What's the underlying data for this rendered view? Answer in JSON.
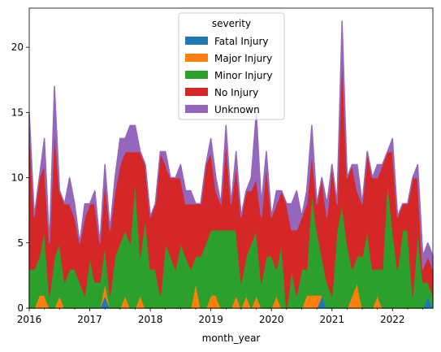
{
  "chart_data": {
    "type": "area",
    "stacked": true,
    "xlabel": "month_year",
    "ylabel": "",
    "x": [
      "2016-01",
      "2016-02",
      "2016-03",
      "2016-04",
      "2016-05",
      "2016-06",
      "2016-07",
      "2016-08",
      "2016-09",
      "2016-10",
      "2016-11",
      "2016-12",
      "2017-01",
      "2017-02",
      "2017-03",
      "2017-04",
      "2017-05",
      "2017-06",
      "2017-07",
      "2017-08",
      "2017-09",
      "2017-10",
      "2017-11",
      "2017-12",
      "2018-01",
      "2018-02",
      "2018-03",
      "2018-04",
      "2018-05",
      "2018-06",
      "2018-07",
      "2018-08",
      "2018-09",
      "2018-10",
      "2018-11",
      "2018-12",
      "2019-01",
      "2019-02",
      "2019-03",
      "2019-04",
      "2019-05",
      "2019-06",
      "2019-07",
      "2019-08",
      "2019-09",
      "2019-10",
      "2019-11",
      "2019-12",
      "2020-01",
      "2020-02",
      "2020-03",
      "2020-04",
      "2020-05",
      "2020-06",
      "2020-07",
      "2020-08",
      "2020-09",
      "2020-10",
      "2020-11",
      "2020-12",
      "2021-01",
      "2021-02",
      "2021-03",
      "2021-04",
      "2021-05",
      "2021-06",
      "2021-07",
      "2021-08",
      "2021-09",
      "2021-10",
      "2021-11",
      "2021-12",
      "2022-01",
      "2022-02",
      "2022-03",
      "2022-04",
      "2022-05",
      "2022-06",
      "2022-07",
      "2022-08",
      "2022-09"
    ],
    "xticks": [
      "2016",
      "2017",
      "2018",
      "2019",
      "2020",
      "2021",
      "2022"
    ],
    "xtick_dates": [
      "2016-01",
      "2017-01",
      "2018-01",
      "2019-01",
      "2020-01",
      "2021-01",
      "2022-01"
    ],
    "xlim": [
      "2016-01",
      "2022-09"
    ],
    "ylim": [
      0,
      23
    ],
    "yticks": [
      0,
      5,
      10,
      15,
      20
    ],
    "legend": {
      "title": "severity",
      "placement": "upper-center"
    },
    "series": [
      {
        "name": "Fatal Injury",
        "color": "#1f77b4",
        "values": [
          0,
          0,
          0,
          0,
          0,
          0,
          0,
          0,
          0,
          0,
          0,
          0,
          0,
          0,
          0,
          1,
          0,
          0,
          0,
          0,
          0,
          0,
          0,
          0,
          0,
          0,
          0,
          0,
          0,
          0,
          0,
          0,
          0,
          0,
          0,
          0,
          0,
          0,
          0,
          0,
          0,
          0,
          0,
          0,
          0,
          0,
          0,
          0,
          0,
          0,
          0,
          0,
          0,
          0,
          0,
          0,
          0,
          0,
          1,
          0,
          0,
          0,
          0,
          0,
          0,
          0,
          0,
          0,
          0,
          0,
          0,
          0,
          0,
          0,
          0,
          0,
          0,
          0,
          0,
          1,
          0
        ]
      },
      {
        "name": "Major Injury",
        "color": "#ff7f0e",
        "values": [
          0,
          0,
          1,
          1,
          0,
          0,
          1,
          0,
          0,
          0,
          0,
          0,
          0,
          0,
          0,
          1,
          0,
          0,
          0,
          1,
          0,
          0,
          1,
          0,
          0,
          0,
          0,
          0,
          0,
          0,
          0,
          0,
          0,
          2,
          0,
          0,
          1,
          1,
          0,
          0,
          0,
          1,
          0,
          1,
          0,
          1,
          0,
          0,
          0,
          1,
          0,
          0,
          0,
          0,
          0,
          1,
          1,
          1,
          0,
          0,
          0,
          0,
          0,
          0,
          1,
          2,
          0,
          0,
          0,
          1,
          0,
          0,
          0,
          0,
          0,
          0,
          0,
          0,
          0,
          0,
          0
        ]
      },
      {
        "name": "Minor Injury",
        "color": "#2ca02c",
        "values": [
          3,
          3,
          3,
          5,
          1,
          4,
          4,
          2,
          3,
          3,
          2,
          1,
          4,
          2,
          2,
          3,
          1,
          4,
          5,
          5,
          5,
          10,
          3,
          7,
          3,
          3,
          1,
          5,
          4,
          3,
          5,
          4,
          3,
          2,
          4,
          5,
          5,
          5,
          6,
          6,
          6,
          5,
          2,
          3,
          5,
          5,
          2,
          4,
          4,
          2,
          5,
          0,
          3,
          1,
          3,
          2,
          8,
          5,
          3,
          2,
          1,
          6,
          8,
          5,
          2,
          2,
          4,
          6,
          3,
          2,
          3,
          10,
          6,
          3,
          6,
          6,
          1,
          6,
          2,
          1,
          1
        ]
      },
      {
        "name": "No Injury",
        "color": "#d62728",
        "values": [
          11,
          4,
          6,
          5,
          4,
          10,
          4,
          6,
          5,
          4,
          3,
          6,
          4,
          6,
          3,
          5,
          5,
          5,
          6,
          6,
          7,
          2,
          8,
          4,
          4,
          5,
          11,
          6,
          6,
          7,
          5,
          4,
          5,
          4,
          4,
          6,
          6,
          3,
          2,
          7,
          2,
          5,
          5,
          5,
          4,
          4,
          5,
          7,
          3,
          5,
          4,
          8,
          3,
          5,
          4,
          5,
          3,
          2,
          6,
          5,
          10,
          2,
          12,
          5,
          8,
          5,
          4,
          6,
          7,
          7,
          8,
          2,
          6,
          4,
          2,
          2,
          9,
          4,
          1,
          2,
          2
        ]
      },
      {
        "name": "Unknown",
        "color": "#9467bd",
        "values": [
          1,
          0,
          0,
          2,
          0,
          3,
          0,
          0,
          2,
          1,
          0,
          1,
          0,
          1,
          0,
          1,
          0,
          1,
          2,
          1,
          2,
          2,
          0,
          0,
          0,
          0,
          0,
          1,
          0,
          0,
          1,
          1,
          1,
          0,
          0,
          0,
          1,
          1,
          0,
          1,
          0,
          1,
          0,
          0,
          1,
          5,
          1,
          1,
          0,
          1,
          0,
          0,
          2,
          3,
          0,
          1,
          2,
          0,
          0,
          1,
          0,
          0,
          2,
          0,
          0,
          2,
          0,
          0,
          0,
          1,
          0,
          0,
          1,
          0,
          0,
          0,
          0,
          1,
          1,
          1,
          1
        ]
      }
    ]
  }
}
